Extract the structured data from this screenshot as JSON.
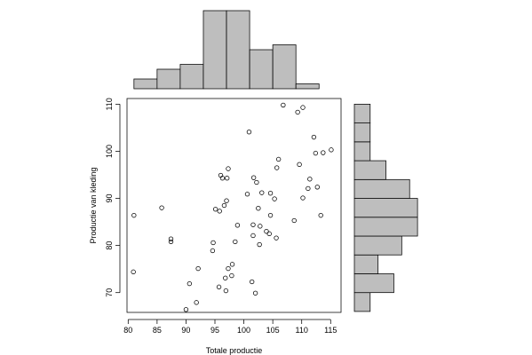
{
  "chart_data": {
    "type": "scatter",
    "title": "",
    "xlabel": "Totale productie",
    "ylabel": "Productie van kleding",
    "xlim": [
      79.8,
      116.8
    ],
    "ylim": [
      65.8,
      111.2
    ],
    "xticks": [
      80,
      85,
      90,
      95,
      100,
      105,
      110,
      115
    ],
    "yticks": [
      70,
      80,
      90,
      100,
      110
    ],
    "grid": false,
    "marker": "open-circle",
    "colors": {
      "hist_fill": "#bebebe",
      "stroke": "#000000",
      "background": "#ffffff"
    },
    "series": [
      {
        "points": [
          [
            80.9,
            74.4
          ],
          [
            81.0,
            86.4
          ],
          [
            85.8,
            88.0
          ],
          [
            87.4,
            81.4
          ],
          [
            87.4,
            80.8
          ],
          [
            90.0,
            66.4
          ],
          [
            90.6,
            71.9
          ],
          [
            91.8,
            67.9
          ],
          [
            92.1,
            75.1
          ],
          [
            94.6,
            78.9
          ],
          [
            94.7,
            80.6
          ],
          [
            95.1,
            87.7
          ],
          [
            95.7,
            71.2
          ],
          [
            95.8,
            87.3
          ],
          [
            96.0,
            94.9
          ],
          [
            96.3,
            94.3
          ],
          [
            96.6,
            88.5
          ],
          [
            96.8,
            73.1
          ],
          [
            96.9,
            70.4
          ],
          [
            97.0,
            89.5
          ],
          [
            97.1,
            94.3
          ],
          [
            97.3,
            96.3
          ],
          [
            97.3,
            75.1
          ],
          [
            97.9,
            73.6
          ],
          [
            98.0,
            76.0
          ],
          [
            98.5,
            80.8
          ],
          [
            98.9,
            84.3
          ],
          [
            100.6,
            90.9
          ],
          [
            100.9,
            104.1
          ],
          [
            101.4,
            72.3
          ],
          [
            101.6,
            82.1
          ],
          [
            101.6,
            84.4
          ],
          [
            101.7,
            94.4
          ],
          [
            102.0,
            69.9
          ],
          [
            102.2,
            93.4
          ],
          [
            102.5,
            87.9
          ],
          [
            102.7,
            80.2
          ],
          [
            102.8,
            84.1
          ],
          [
            103.1,
            91.2
          ],
          [
            103.9,
            83.0
          ],
          [
            104.4,
            82.5
          ],
          [
            104.6,
            91.1
          ],
          [
            104.6,
            86.4
          ],
          [
            105.3,
            89.9
          ],
          [
            105.6,
            81.6
          ],
          [
            105.7,
            96.5
          ],
          [
            106.0,
            98.3
          ],
          [
            106.8,
            109.8
          ],
          [
            108.7,
            85.3
          ],
          [
            109.3,
            108.3
          ],
          [
            109.6,
            97.2
          ],
          [
            110.2,
            109.3
          ],
          [
            110.2,
            90.1
          ],
          [
            111.1,
            92.1
          ],
          [
            111.4,
            94.1
          ],
          [
            112.1,
            103.0
          ],
          [
            112.4,
            99.6
          ],
          [
            112.7,
            92.4
          ],
          [
            113.3,
            86.4
          ],
          [
            113.7,
            99.7
          ],
          [
            115.1,
            100.3
          ]
        ]
      }
    ],
    "top_histogram": {
      "bins": [
        [
          81,
          85
        ],
        [
          85,
          89
        ],
        [
          89,
          93
        ],
        [
          93,
          97
        ],
        [
          97,
          101
        ],
        [
          101,
          105
        ],
        [
          105,
          109
        ],
        [
          109,
          113
        ]
      ],
      "values": [
        1,
        2,
        2.5,
        8,
        8,
        4,
        4.5,
        0.5
      ]
    },
    "right_histogram": {
      "bins": [
        [
          66,
          70
        ],
        [
          70,
          74
        ],
        [
          74,
          78
        ],
        [
          78,
          82
        ],
        [
          82,
          86
        ],
        [
          86,
          90
        ],
        [
          90,
          94
        ],
        [
          94,
          98
        ],
        [
          98,
          102
        ],
        [
          102,
          106
        ],
        [
          106,
          110
        ]
      ],
      "values": [
        1,
        2.5,
        1.5,
        3,
        4,
        4,
        3.5,
        2,
        1,
        1,
        1
      ]
    }
  }
}
